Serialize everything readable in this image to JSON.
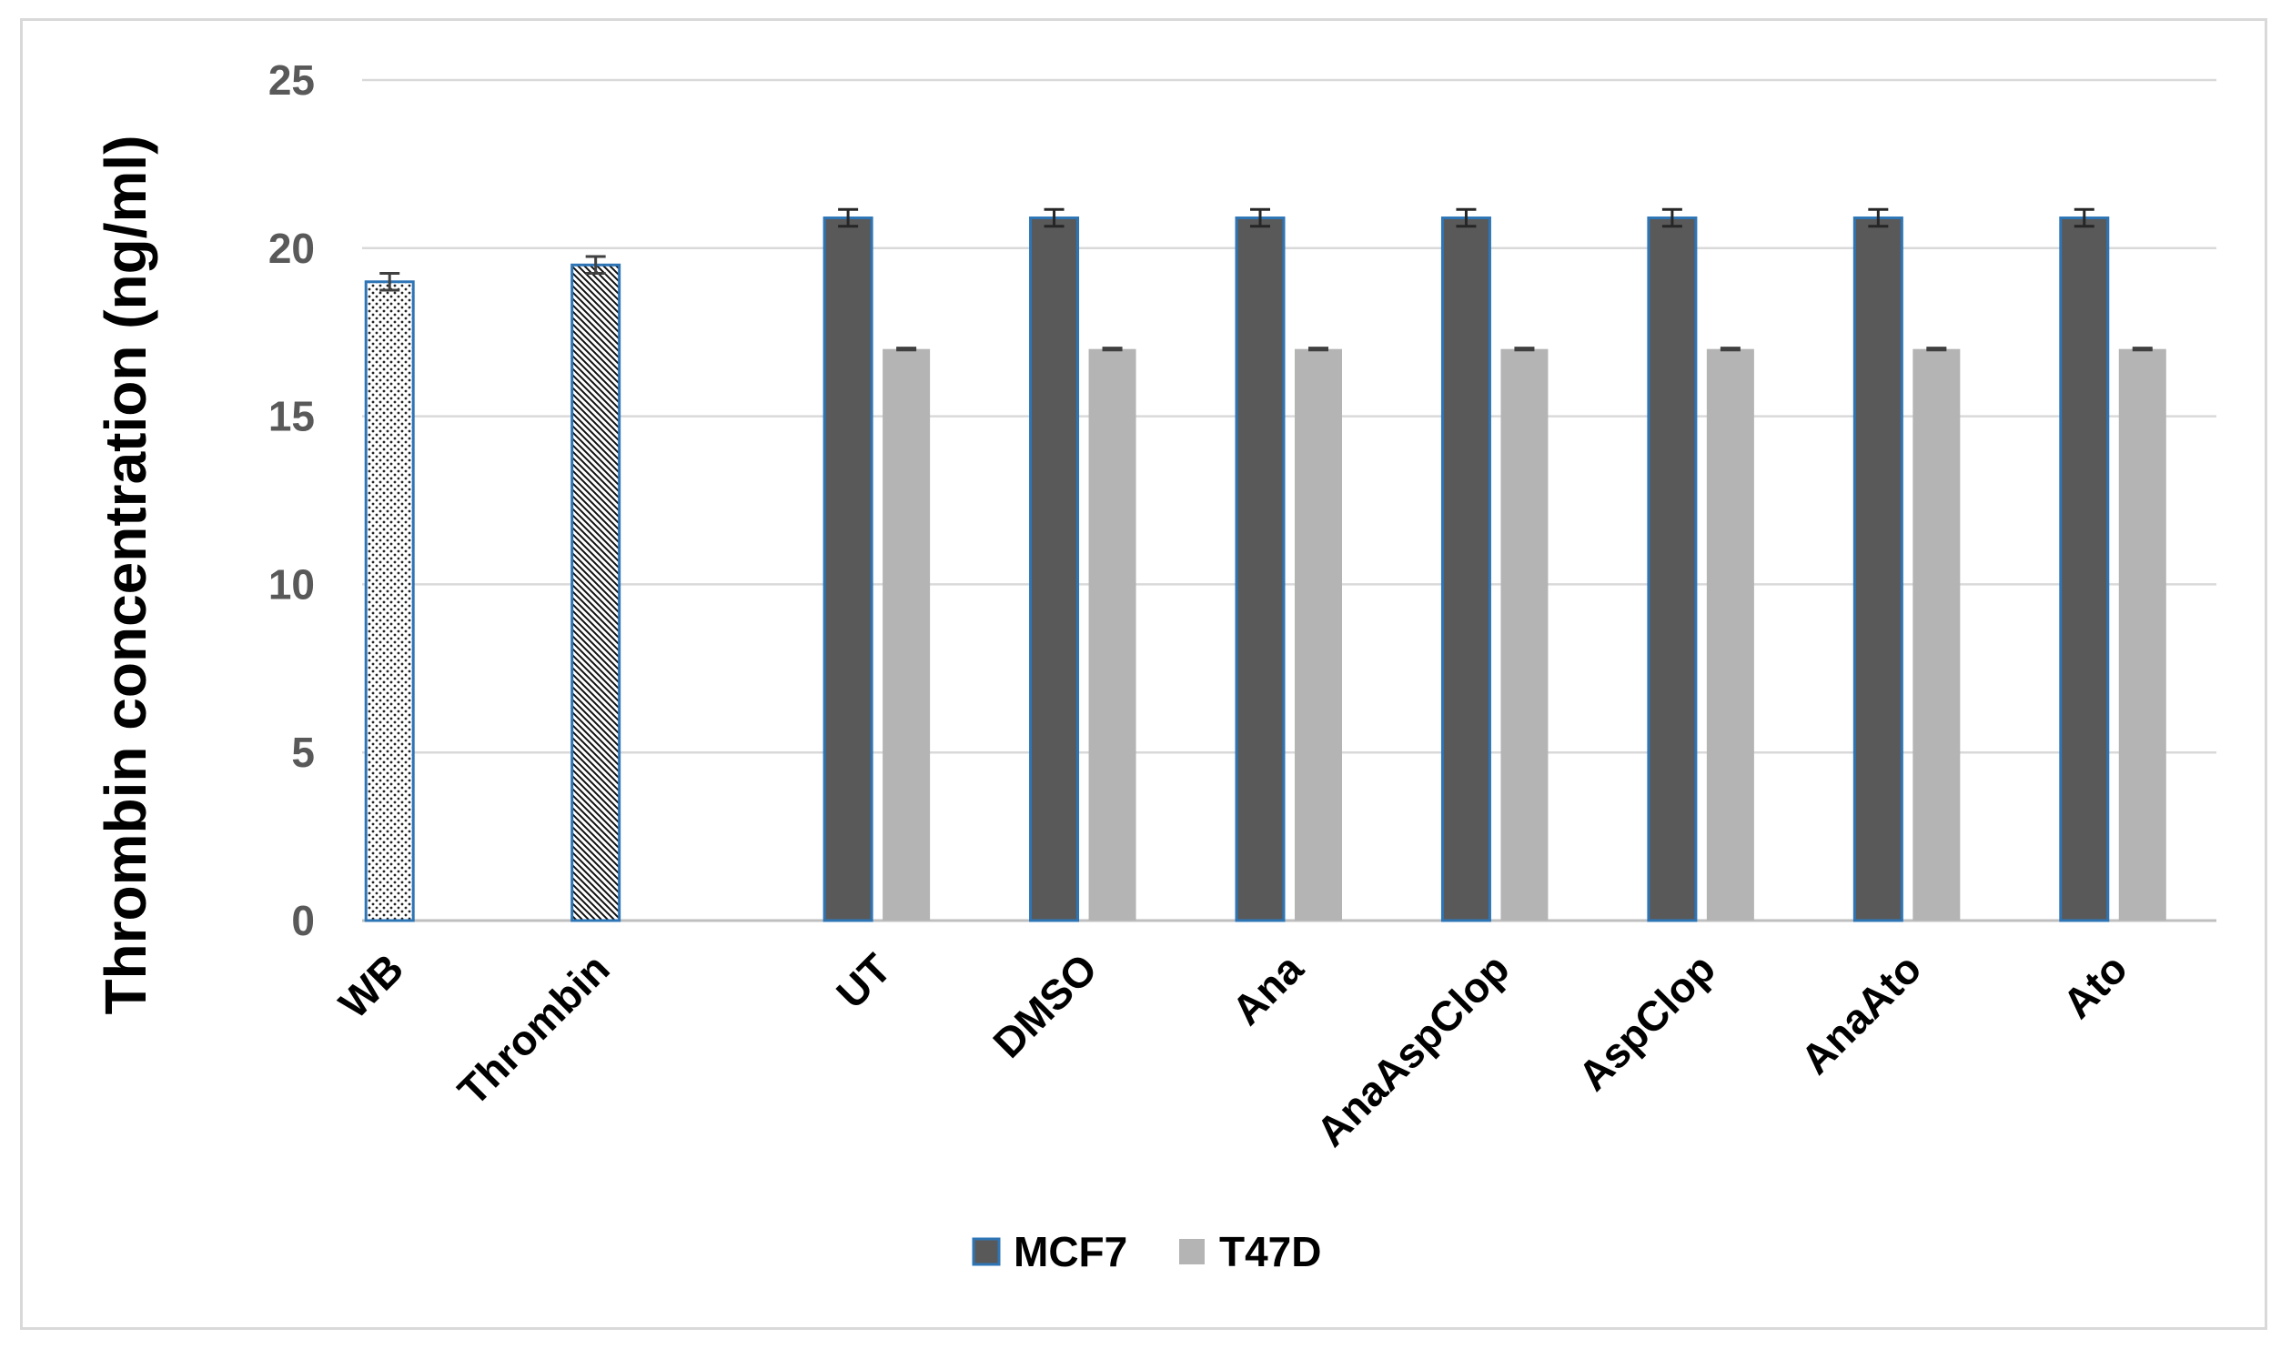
{
  "chart_data": {
    "type": "bar",
    "title": "",
    "xlabel": "",
    "ylabel": "Thrombin concentration (ng/ml)",
    "ylim": [
      0,
      25
    ],
    "yticks": [
      0,
      5,
      10,
      15,
      20,
      25
    ],
    "grid": true,
    "legend_position": "bottom",
    "categories": [
      "WB",
      "Thrombin",
      "UT",
      "DMSO",
      "Ana",
      "AnaAspClop",
      "AspClop",
      "AnaAto",
      "Ato"
    ],
    "controls": [
      {
        "category": "WB",
        "value": 19.0,
        "error": 0.25,
        "pattern": "dots"
      },
      {
        "category": "Thrombin",
        "value": 19.5,
        "error": 0.25,
        "pattern": "diagonal"
      }
    ],
    "series": [
      {
        "name": "MCF7",
        "color": "#595959",
        "border": "#2e75b6",
        "values": [
          null,
          null,
          20.9,
          20.9,
          20.9,
          20.9,
          20.9,
          20.9,
          20.9
        ],
        "errors": [
          null,
          null,
          0.25,
          0.25,
          0.25,
          0.25,
          0.25,
          0.25,
          0.25
        ]
      },
      {
        "name": "T47D",
        "color": "#b4b4b4",
        "values": [
          null,
          null,
          17.0,
          17.0,
          17.0,
          17.0,
          17.0,
          17.0,
          17.0
        ],
        "errors": [
          null,
          null,
          0.03,
          0.03,
          0.03,
          0.03,
          0.03,
          0.03,
          0.03
        ]
      }
    ]
  }
}
